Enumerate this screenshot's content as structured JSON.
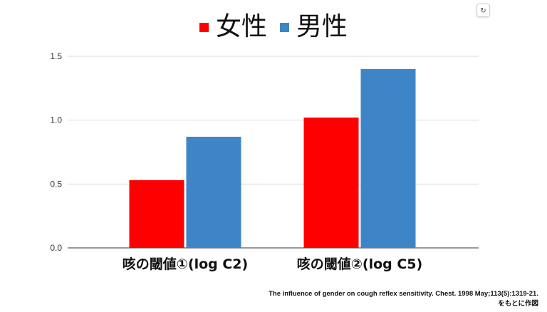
{
  "toolbar": {
    "refresh_icon": "refresh-icon",
    "refresh_glyph": "↻"
  },
  "chart_data": {
    "type": "bar",
    "categories": [
      "咳の閾値①(log C2)",
      "咳の閾値②(log C5)"
    ],
    "series": [
      {
        "name": "女性",
        "color": "#ff0000",
        "values": [
          0.53,
          1.02
        ]
      },
      {
        "name": "男性",
        "color": "#3d85c6",
        "values": [
          0.87,
          1.4
        ]
      }
    ],
    "ylim": [
      0,
      1.5
    ],
    "yticks": [
      "0.0",
      "0.5",
      "1.0",
      "1.5"
    ],
    "ytick_values": [
      0,
      0.5,
      1.0,
      1.5
    ],
    "grid": true,
    "legend": "top-center",
    "title": "",
    "xlabel": "",
    "ylabel": ""
  },
  "source": {
    "line1": "The influence of gender on cough reflex sensitivity. Chest. 1998 May;113(5):1319-21.",
    "line2": "をもとに作図"
  }
}
